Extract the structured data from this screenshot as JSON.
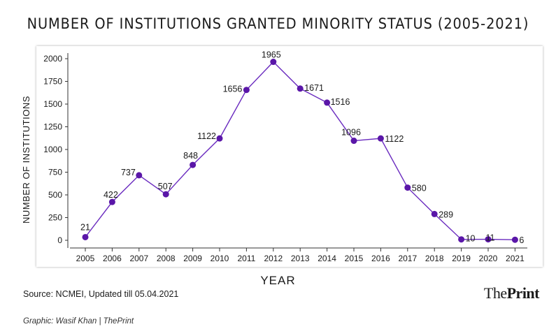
{
  "header": {
    "title": "NUMBER OF INSTITUTIONS GRANTED MINORITY STATUS (2005-2021)"
  },
  "footer": {
    "source": "Source: NCMEI, Updated till 05.04.2021",
    "credit": "Graphic: Wasif Khan | ThePrint",
    "brand_the": "The",
    "brand_print": "Print"
  },
  "colors": {
    "line": "#6a2bbf",
    "marker": "#5a16a8",
    "axis": "#333333"
  },
  "chart_data": {
    "type": "line",
    "title": "NUMBER OF INSTITUTIONS GRANTED MINORITY STATUS (2005-2021)",
    "xlabel": "YEAR",
    "ylabel": "NUMBER OF INSTITUTIONS",
    "x": [
      "2005",
      "2006",
      "2007",
      "2008",
      "2009",
      "2010",
      "2011",
      "2012",
      "2013",
      "2014",
      "2015",
      "2016",
      "2017",
      "2018",
      "2019",
      "2020",
      "2021"
    ],
    "series": [
      {
        "values": [
          21,
          422,
          737,
          507,
          848,
          1122,
          1656,
          1965,
          1671,
          1516,
          1096,
          1122,
          580,
          289,
          10,
          11,
          6
        ]
      }
    ],
    "y_axis_positions": [
      35,
      422,
      716,
      507,
      830,
      1122,
      1656,
      1965,
      1671,
      1516,
      1096,
      1122,
      580,
      289,
      10,
      11,
      6
    ],
    "ylim": [
      0,
      2000
    ],
    "yticks": [
      0,
      250,
      500,
      750,
      1000,
      1250,
      1500,
      1750,
      2000
    ],
    "grid": false,
    "legend": "none"
  }
}
